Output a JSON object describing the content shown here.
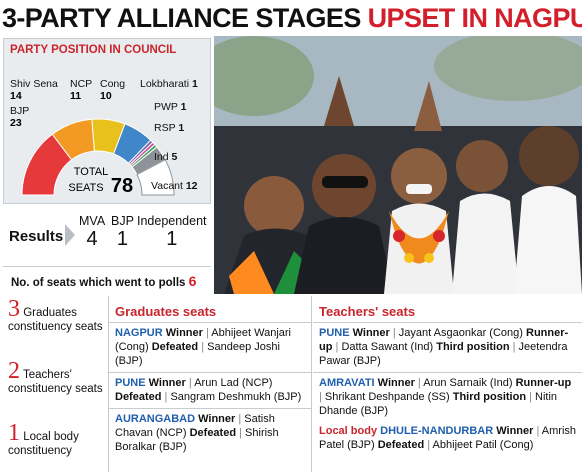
{
  "headline": {
    "black": "3-PARTY ALLIANCE STAGES",
    "red": "UPSET IN NAGPUR"
  },
  "chart_data": {
    "type": "pie",
    "subtype": "semicircle-donut",
    "title": "PARTY POSITION IN COUNCIL",
    "total_label": "TOTAL SEATS",
    "total": 78,
    "slices": [
      {
        "label": "BJP",
        "value": 23,
        "color": "#e5393b"
      },
      {
        "label": "Shiv Sena",
        "value": 14,
        "color": "#f39a24"
      },
      {
        "label": "NCP",
        "value": 11,
        "color": "#e9c11c"
      },
      {
        "label": "Cong",
        "value": 10,
        "color": "#3f87c9"
      },
      {
        "label": "Lokbharati",
        "value": 1,
        "color": "#7b5ea7"
      },
      {
        "label": "PWP",
        "value": 1,
        "color": "#c84fa0"
      },
      {
        "label": "RSP",
        "value": 1,
        "color": "#3aa45a"
      },
      {
        "label": "Ind",
        "value": 5,
        "color": "#8e9399"
      },
      {
        "label": "Vacant",
        "value": 12,
        "color": "#ffffff"
      }
    ]
  },
  "results": {
    "label": "Results",
    "columns": [
      {
        "head": "MVA",
        "value": "4"
      },
      {
        "head": "BJP",
        "value": "1"
      },
      {
        "head": "Independent",
        "value": "1"
      }
    ]
  },
  "polls": {
    "text": "No. of seats which went to polls",
    "value": "6"
  },
  "constituencies": [
    {
      "num": "3",
      "text": "Graduates constituency seats"
    },
    {
      "num": "2",
      "text": "Teachers' constituency seats"
    },
    {
      "num": "1",
      "text": "Local body constituency"
    }
  ],
  "graduates": {
    "heading": "Graduates seats",
    "entries": [
      {
        "place": "NAGPUR",
        "w_label": "Winner",
        "winner": "Abhijeet Wanjari (Cong)",
        "d_label": "Defeated",
        "defeated": "Sandeep Joshi (BJP)"
      },
      {
        "place": "PUNE",
        "w_label": "Winner",
        "winner": "Arun Lad (NCP)",
        "d_label": "Defeated",
        "defeated": "Sangram Deshmukh (BJP)"
      },
      {
        "place": "AURANGABAD",
        "w_label": "Winner",
        "winner": "Satish Chavan (NCP)",
        "d_label": "Defeated",
        "defeated": "Shirish Boralkar (BJP)"
      }
    ]
  },
  "teachers": {
    "heading": "Teachers' seats",
    "entries": [
      {
        "place": "PUNE",
        "w_label": "Winner",
        "winner": "Jayant Asgaonkar (Cong)",
        "r_label": "Runner-up",
        "runner": "Datta Sawant (Ind)",
        "t_label": "Third position",
        "third": "Jeetendra Pawar (BJP)"
      },
      {
        "place": "AMRAVATI",
        "w_label": "Winner",
        "winner": "Arun Sarnaik (Ind)",
        "r_label": "Runner-up",
        "runner": "Shrikant Deshpande (SS)",
        "t_label": "Third position",
        "third": "Nitin Dhande (BJP)"
      }
    ],
    "local": {
      "label": "Local body",
      "place": "DHULE-NANDURBAR",
      "w_label": "Winner",
      "winner": "Amrish Patel (BJP)",
      "d_label": "Defeated",
      "defeated": "Abhijeet Patil (Cong)"
    }
  },
  "photo_icon": "celebration-photo"
}
